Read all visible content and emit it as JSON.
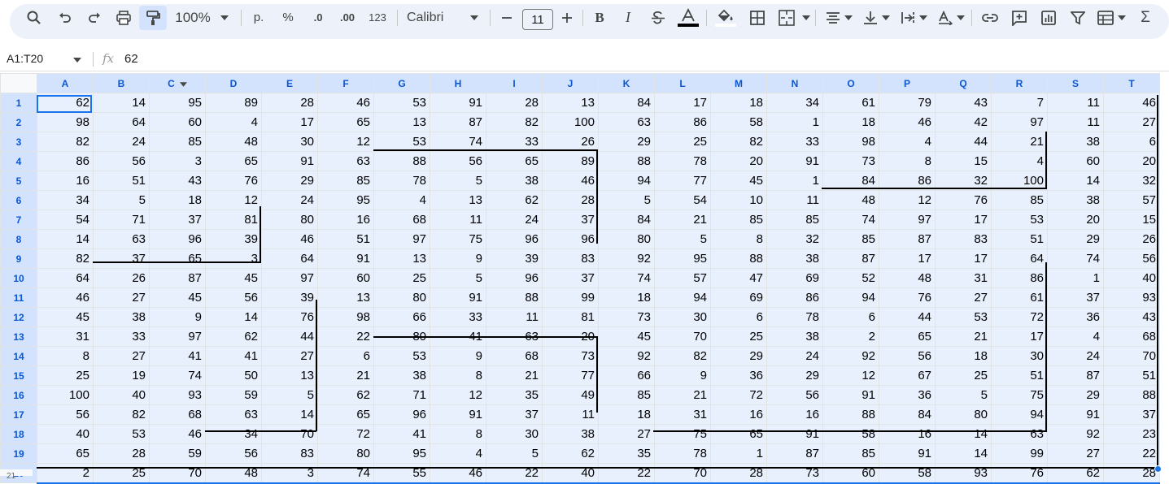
{
  "toolbar": {
    "zoom": "100%",
    "format_currency": "p.",
    "format_percent": "%",
    "format_decrease": ".0",
    "format_increase": ".00",
    "format_more": "123",
    "font": "Calibri",
    "font_size": "11"
  },
  "formula_bar": {
    "name_box": "A1:T20",
    "fx_label": "fx",
    "value": "62"
  },
  "grid": {
    "columns": [
      "A",
      "B",
      "C",
      "D",
      "E",
      "F",
      "G",
      "H",
      "I",
      "J",
      "K",
      "L",
      "M",
      "N",
      "O",
      "P",
      "Q",
      "R",
      "S",
      "T"
    ],
    "rows": [
      {
        "num": "1",
        "cells": [
          "62",
          "14",
          "95",
          "89",
          "28",
          "46",
          "53",
          "91",
          "28",
          "13",
          "84",
          "17",
          "18",
          "34",
          "61",
          "79",
          "43",
          "7",
          "11",
          "46"
        ]
      },
      {
        "num": "2",
        "cells": [
          "98",
          "64",
          "60",
          "4",
          "17",
          "65",
          "13",
          "87",
          "82",
          "100",
          "63",
          "86",
          "58",
          "1",
          "18",
          "46",
          "42",
          "97",
          "11",
          "27"
        ]
      },
      {
        "num": "3",
        "cells": [
          "82",
          "24",
          "85",
          "48",
          "30",
          "12",
          "53",
          "74",
          "33",
          "26",
          "29",
          "25",
          "82",
          "33",
          "98",
          "4",
          "44",
          "21",
          "38",
          "6"
        ]
      },
      {
        "num": "4",
        "cells": [
          "86",
          "56",
          "3",
          "65",
          "91",
          "63",
          "88",
          "56",
          "65",
          "89",
          "88",
          "78",
          "20",
          "91",
          "73",
          "8",
          "15",
          "4",
          "60",
          "20"
        ]
      },
      {
        "num": "5",
        "cells": [
          "16",
          "51",
          "43",
          "76",
          "29",
          "85",
          "78",
          "5",
          "38",
          "46",
          "94",
          "77",
          "45",
          "1",
          "84",
          "86",
          "32",
          "100",
          "14",
          "32"
        ]
      },
      {
        "num": "6",
        "cells": [
          "34",
          "5",
          "18",
          "12",
          "24",
          "95",
          "4",
          "13",
          "62",
          "28",
          "5",
          "54",
          "10",
          "11",
          "48",
          "12",
          "76",
          "85",
          "38",
          "57"
        ]
      },
      {
        "num": "7",
        "cells": [
          "54",
          "71",
          "37",
          "81",
          "80",
          "16",
          "68",
          "11",
          "24",
          "37",
          "84",
          "21",
          "85",
          "85",
          "74",
          "97",
          "17",
          "53",
          "20",
          "15"
        ]
      },
      {
        "num": "8",
        "cells": [
          "14",
          "63",
          "96",
          "39",
          "46",
          "51",
          "97",
          "75",
          "96",
          "96",
          "80",
          "5",
          "8",
          "32",
          "85",
          "87",
          "83",
          "51",
          "29",
          "26"
        ]
      },
      {
        "num": "9",
        "cells": [
          "82",
          "37",
          "65",
          "3",
          "64",
          "91",
          "13",
          "9",
          "39",
          "83",
          "92",
          "95",
          "88",
          "38",
          "87",
          "17",
          "17",
          "64",
          "74",
          "56"
        ]
      },
      {
        "num": "10",
        "cells": [
          "64",
          "26",
          "87",
          "45",
          "97",
          "60",
          "25",
          "5",
          "96",
          "37",
          "74",
          "57",
          "47",
          "69",
          "52",
          "48",
          "31",
          "86",
          "1",
          "40"
        ]
      },
      {
        "num": "11",
        "cells": [
          "46",
          "27",
          "45",
          "56",
          "39",
          "13",
          "80",
          "91",
          "88",
          "99",
          "18",
          "94",
          "69",
          "86",
          "94",
          "76",
          "27",
          "61",
          "37",
          "93"
        ]
      },
      {
        "num": "12",
        "cells": [
          "45",
          "38",
          "9",
          "14",
          "76",
          "98",
          "66",
          "33",
          "11",
          "81",
          "73",
          "30",
          "6",
          "78",
          "6",
          "44",
          "53",
          "72",
          "36",
          "43"
        ]
      },
      {
        "num": "13",
        "cells": [
          "31",
          "33",
          "97",
          "62",
          "44",
          "22",
          "80",
          "41",
          "63",
          "20",
          "45",
          "70",
          "25",
          "38",
          "2",
          "65",
          "21",
          "17",
          "4",
          "68"
        ]
      },
      {
        "num": "14",
        "cells": [
          "8",
          "27",
          "41",
          "41",
          "27",
          "6",
          "53",
          "9",
          "68",
          "73",
          "92",
          "82",
          "29",
          "24",
          "92",
          "56",
          "18",
          "30",
          "24",
          "70"
        ]
      },
      {
        "num": "15",
        "cells": [
          "25",
          "19",
          "74",
          "50",
          "13",
          "21",
          "38",
          "8",
          "21",
          "77",
          "66",
          "9",
          "36",
          "29",
          "12",
          "67",
          "25",
          "51",
          "87",
          "51"
        ]
      },
      {
        "num": "16",
        "cells": [
          "100",
          "40",
          "93",
          "59",
          "5",
          "62",
          "71",
          "12",
          "35",
          "49",
          "85",
          "21",
          "72",
          "56",
          "91",
          "36",
          "5",
          "75",
          "29",
          "88"
        ]
      },
      {
        "num": "17",
        "cells": [
          "56",
          "82",
          "68",
          "63",
          "14",
          "65",
          "96",
          "91",
          "37",
          "11",
          "18",
          "31",
          "16",
          "16",
          "88",
          "84",
          "80",
          "94",
          "91",
          "37"
        ]
      },
      {
        "num": "18",
        "cells": [
          "40",
          "53",
          "46",
          "34",
          "70",
          "72",
          "41",
          "8",
          "30",
          "38",
          "27",
          "75",
          "65",
          "91",
          "58",
          "16",
          "14",
          "63",
          "92",
          "23"
        ]
      },
      {
        "num": "19",
        "cells": [
          "65",
          "28",
          "59",
          "56",
          "83",
          "80",
          "95",
          "4",
          "5",
          "62",
          "35",
          "78",
          "1",
          "87",
          "85",
          "91",
          "14",
          "99",
          "27",
          "22"
        ]
      },
      {
        "num": "20",
        "cells": [
          "2",
          "25",
          "70",
          "48",
          "3",
          "74",
          "55",
          "46",
          "22",
          "40",
          "22",
          "70",
          "28",
          "73",
          "60",
          "58",
          "93",
          "76",
          "62",
          "28"
        ]
      }
    ],
    "next_row_num": "21"
  }
}
